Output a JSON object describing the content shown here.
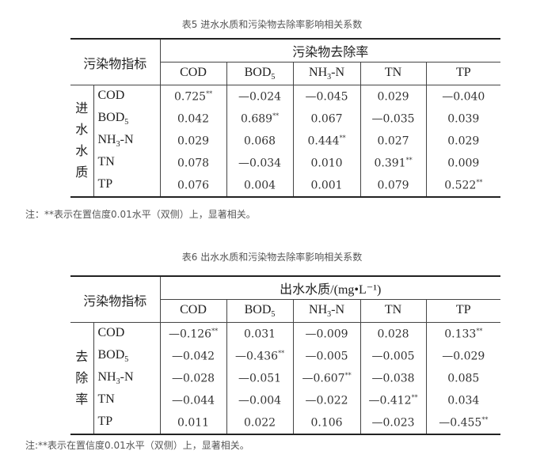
{
  "tables": [
    {
      "caption": "表5 进水水质和污染物去除率影响相关系数",
      "corner": "污染物指标",
      "group_header": "污染物去除率",
      "row_group": "进水水质",
      "columns": [
        {
          "main": "COD",
          "sub": ""
        },
        {
          "main": "BOD",
          "sub": "5"
        },
        {
          "main": "NH",
          "sub": "3",
          "tail": "-N"
        },
        {
          "main": "TN",
          "sub": ""
        },
        {
          "main": "TP",
          "sub": ""
        }
      ],
      "rows": [
        {
          "label": "COD",
          "sub": "",
          "tail": "",
          "values": [
            [
              "0.725",
              "**"
            ],
            [
              "—0.024",
              ""
            ],
            [
              "—0.045",
              ""
            ],
            [
              "0.029",
              ""
            ],
            [
              "—0.040",
              ""
            ]
          ]
        },
        {
          "label": "BOD",
          "sub": "5",
          "tail": "",
          "values": [
            [
              "0.042",
              ""
            ],
            [
              "0.689",
              "**"
            ],
            [
              "0.067",
              ""
            ],
            [
              "—0.035",
              ""
            ],
            [
              "0.039",
              ""
            ]
          ]
        },
        {
          "label": "NH",
          "sub": "3",
          "tail": "-N",
          "values": [
            [
              "0.029",
              ""
            ],
            [
              "0.068",
              ""
            ],
            [
              "0.444",
              "**"
            ],
            [
              "0.027",
              ""
            ],
            [
              "0.029",
              ""
            ]
          ]
        },
        {
          "label": "TN",
          "sub": "",
          "tail": "",
          "values": [
            [
              "0.078",
              ""
            ],
            [
              "—0.034",
              ""
            ],
            [
              "0.010",
              ""
            ],
            [
              "0.391",
              "**"
            ],
            [
              "0.009",
              ""
            ]
          ]
        },
        {
          "label": "TP",
          "sub": "",
          "tail": "",
          "values": [
            [
              "0.076",
              ""
            ],
            [
              "0.004",
              ""
            ],
            [
              "0.001",
              ""
            ],
            [
              "0.079",
              ""
            ],
            [
              "0.522",
              "**"
            ]
          ]
        }
      ],
      "note": "注：**表示在置信度0.01水平（双侧）上，显著相关。"
    },
    {
      "caption": "表6 出水水质和污染物去除率影响相关系数",
      "corner": "污染物指标",
      "group_header": "出水水质/(mg•L⁻¹)",
      "row_group": "去除率",
      "columns": [
        {
          "main": "COD",
          "sub": ""
        },
        {
          "main": "BOD",
          "sub": "5"
        },
        {
          "main": "NH",
          "sub": "3",
          "tail": "-N"
        },
        {
          "main": "TN",
          "sub": ""
        },
        {
          "main": "TP",
          "sub": ""
        }
      ],
      "rows": [
        {
          "label": "COD",
          "sub": "",
          "tail": "",
          "values": [
            [
              "—0.126",
              "**"
            ],
            [
              "0.031",
              ""
            ],
            [
              "—0.009",
              ""
            ],
            [
              "0.028",
              ""
            ],
            [
              "0.133",
              "**"
            ]
          ]
        },
        {
          "label": "BOD",
          "sub": "5",
          "tail": "",
          "values": [
            [
              "—0.042",
              ""
            ],
            [
              "—0.436",
              "**"
            ],
            [
              "—0.005",
              ""
            ],
            [
              "—0.005",
              ""
            ],
            [
              "—0.029",
              ""
            ]
          ]
        },
        {
          "label": "NH",
          "sub": "3",
          "tail": "-N",
          "values": [
            [
              "—0.028",
              ""
            ],
            [
              "—0.051",
              ""
            ],
            [
              "—0.607",
              "**"
            ],
            [
              "—0.038",
              ""
            ],
            [
              "0.085",
              ""
            ]
          ]
        },
        {
          "label": "TN",
          "sub": "",
          "tail": "",
          "values": [
            [
              "—0.044",
              ""
            ],
            [
              "—0.004",
              ""
            ],
            [
              "—0.022",
              ""
            ],
            [
              "—0.412",
              "**"
            ],
            [
              "0.034",
              ""
            ]
          ]
        },
        {
          "label": "TP",
          "sub": "",
          "tail": "",
          "values": [
            [
              "0.011",
              ""
            ],
            [
              "0.022",
              ""
            ],
            [
              "0.106",
              ""
            ],
            [
              "—0.023",
              ""
            ],
            [
              "—0.455",
              "**"
            ]
          ]
        }
      ],
      "note": "注:**表示在置信度0.01水平（双侧）上，显著相关。"
    }
  ]
}
